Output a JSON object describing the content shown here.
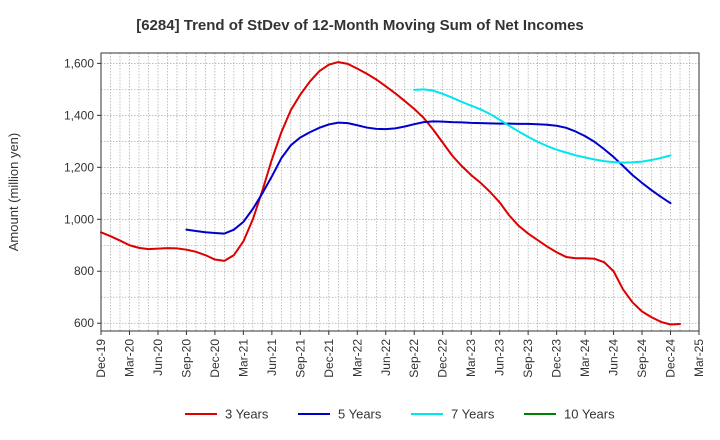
{
  "chart_data": {
    "type": "line",
    "title": "[6284]  Trend of StDev of 12-Month Moving Sum of Net Incomes",
    "ylabel": "Amount (million yen)",
    "xlabel": "",
    "ylim": [
      570,
      1640
    ],
    "yticks": [
      600,
      800,
      1000,
      1200,
      1400,
      1600
    ],
    "ytick_labels": [
      "600",
      "800",
      "1,000",
      "1,200",
      "1,400",
      "1,600"
    ],
    "xlim": [
      "2019-12",
      "2025-03"
    ],
    "xtick_labels": [
      "Dec-19",
      "Mar-20",
      "Jun-20",
      "Sep-20",
      "Dec-20",
      "Mar-21",
      "Jun-21",
      "Sep-21",
      "Dec-21",
      "Mar-22",
      "Jun-22",
      "Sep-22",
      "Dec-22",
      "Mar-23",
      "Jun-23",
      "Sep-23",
      "Dec-23",
      "Mar-24",
      "Jun-24",
      "Sep-24",
      "Dec-24",
      "Mar-25"
    ],
    "grid": true,
    "legend_position": "bottom",
    "series": [
      {
        "name": "3 Years",
        "color": "#dd0000",
        "points": [
          [
            "2019-12",
            950
          ],
          [
            "2020-01",
            935
          ],
          [
            "2020-02",
            918
          ],
          [
            "2020-03",
            900
          ],
          [
            "2020-04",
            890
          ],
          [
            "2020-05",
            885
          ],
          [
            "2020-06",
            887
          ],
          [
            "2020-07",
            889
          ],
          [
            "2020-08",
            888
          ],
          [
            "2020-09",
            883
          ],
          [
            "2020-10",
            875
          ],
          [
            "2020-11",
            862
          ],
          [
            "2020-12",
            845
          ],
          [
            "2021-01",
            840
          ],
          [
            "2021-02",
            862
          ],
          [
            "2021-03",
            915
          ],
          [
            "2021-04",
            1000
          ],
          [
            "2021-05",
            1110
          ],
          [
            "2021-06",
            1230
          ],
          [
            "2021-07",
            1335
          ],
          [
            "2021-08",
            1420
          ],
          [
            "2021-09",
            1480
          ],
          [
            "2021-10",
            1530
          ],
          [
            "2021-11",
            1570
          ],
          [
            "2021-12",
            1595
          ],
          [
            "2022-01",
            1605
          ],
          [
            "2022-02",
            1598
          ],
          [
            "2022-03",
            1580
          ],
          [
            "2022-04",
            1560
          ],
          [
            "2022-05",
            1538
          ],
          [
            "2022-06",
            1512
          ],
          [
            "2022-07",
            1485
          ],
          [
            "2022-08",
            1455
          ],
          [
            "2022-09",
            1425
          ],
          [
            "2022-10",
            1390
          ],
          [
            "2022-11",
            1345
          ],
          [
            "2022-12",
            1295
          ],
          [
            "2023-01",
            1245
          ],
          [
            "2023-02",
            1205
          ],
          [
            "2023-03",
            1170
          ],
          [
            "2023-04",
            1140
          ],
          [
            "2023-05",
            1105
          ],
          [
            "2023-06",
            1065
          ],
          [
            "2023-07",
            1015
          ],
          [
            "2023-08",
            975
          ],
          [
            "2023-09",
            945
          ],
          [
            "2023-10",
            920
          ],
          [
            "2023-11",
            895
          ],
          [
            "2023-12",
            873
          ],
          [
            "2024-01",
            855
          ],
          [
            "2024-02",
            850
          ],
          [
            "2024-03",
            850
          ],
          [
            "2024-04",
            848
          ],
          [
            "2024-05",
            835
          ],
          [
            "2024-06",
            800
          ],
          [
            "2024-07",
            730
          ],
          [
            "2024-08",
            680
          ],
          [
            "2024-09",
            645
          ],
          [
            "2024-10",
            623
          ],
          [
            "2024-11",
            605
          ],
          [
            "2024-12",
            595
          ],
          [
            "2025-01",
            597
          ]
        ]
      },
      {
        "name": "5 Years",
        "color": "#0000cc",
        "points": [
          [
            "2020-09",
            960
          ],
          [
            "2020-10",
            955
          ],
          [
            "2020-11",
            950
          ],
          [
            "2020-12",
            947
          ],
          [
            "2021-01",
            945
          ],
          [
            "2021-02",
            960
          ],
          [
            "2021-03",
            990
          ],
          [
            "2021-04",
            1040
          ],
          [
            "2021-05",
            1100
          ],
          [
            "2021-06",
            1165
          ],
          [
            "2021-07",
            1235
          ],
          [
            "2021-08",
            1285
          ],
          [
            "2021-09",
            1315
          ],
          [
            "2021-10",
            1335
          ],
          [
            "2021-11",
            1352
          ],
          [
            "2021-12",
            1365
          ],
          [
            "2022-01",
            1372
          ],
          [
            "2022-02",
            1370
          ],
          [
            "2022-03",
            1362
          ],
          [
            "2022-04",
            1353
          ],
          [
            "2022-05",
            1348
          ],
          [
            "2022-06",
            1347
          ],
          [
            "2022-07",
            1350
          ],
          [
            "2022-08",
            1357
          ],
          [
            "2022-09",
            1366
          ],
          [
            "2022-10",
            1374
          ],
          [
            "2022-11",
            1377
          ],
          [
            "2022-12",
            1376
          ],
          [
            "2023-01",
            1374
          ],
          [
            "2023-02",
            1373
          ],
          [
            "2023-03",
            1371
          ],
          [
            "2023-04",
            1370
          ],
          [
            "2023-05",
            1369
          ],
          [
            "2023-06",
            1368
          ],
          [
            "2023-07",
            1368
          ],
          [
            "2023-08",
            1367
          ],
          [
            "2023-09",
            1367
          ],
          [
            "2023-10",
            1366
          ],
          [
            "2023-11",
            1364
          ],
          [
            "2023-12",
            1360
          ],
          [
            "2024-01",
            1352
          ],
          [
            "2024-02",
            1338
          ],
          [
            "2024-03",
            1320
          ],
          [
            "2024-04",
            1298
          ],
          [
            "2024-05",
            1270
          ],
          [
            "2024-06",
            1240
          ],
          [
            "2024-07",
            1205
          ],
          [
            "2024-08",
            1170
          ],
          [
            "2024-09",
            1140
          ],
          [
            "2024-10",
            1112
          ],
          [
            "2024-11",
            1086
          ],
          [
            "2024-12",
            1062
          ]
        ]
      },
      {
        "name": "7 Years",
        "color": "#00e5ee",
        "points": [
          [
            "2022-09",
            1498
          ],
          [
            "2022-10",
            1500
          ],
          [
            "2022-11",
            1495
          ],
          [
            "2022-12",
            1483
          ],
          [
            "2023-01",
            1468
          ],
          [
            "2023-02",
            1452
          ],
          [
            "2023-03",
            1437
          ],
          [
            "2023-04",
            1423
          ],
          [
            "2023-05",
            1405
          ],
          [
            "2023-06",
            1383
          ],
          [
            "2023-07",
            1360
          ],
          [
            "2023-08",
            1338
          ],
          [
            "2023-09",
            1317
          ],
          [
            "2023-10",
            1298
          ],
          [
            "2023-11",
            1282
          ],
          [
            "2023-12",
            1268
          ],
          [
            "2024-01",
            1257
          ],
          [
            "2024-02",
            1246
          ],
          [
            "2024-03",
            1238
          ],
          [
            "2024-04",
            1230
          ],
          [
            "2024-05",
            1224
          ],
          [
            "2024-06",
            1220
          ],
          [
            "2024-07",
            1218
          ],
          [
            "2024-08",
            1219
          ],
          [
            "2024-09",
            1222
          ],
          [
            "2024-10",
            1228
          ],
          [
            "2024-11",
            1236
          ],
          [
            "2024-12",
            1246
          ]
        ]
      },
      {
        "name": "10 Years",
        "color": "#008000",
        "points": []
      }
    ]
  }
}
